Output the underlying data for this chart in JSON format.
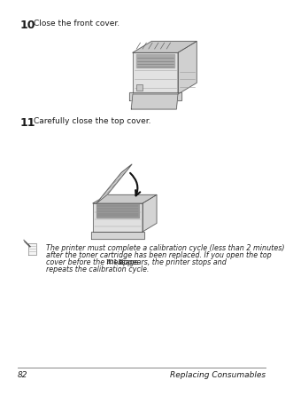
{
  "page_number": "82",
  "footer_text": "Replacing Consumables",
  "step10_number": "10",
  "step10_text": "Close the front cover.",
  "step11_number": "11",
  "step11_text": "Carefully close the top cover.",
  "note_line1": "The printer must complete a calibration cycle (less than 2 minutes)",
  "note_line2": "after the toner cartridge has been replaced. If you open the top",
  "note_line3a": "cover before the message ",
  "note_line3b": "IDLE",
  "note_line3c": " appears, the printer stops and",
  "note_line4": "repeats the calibration cycle.",
  "background_color": "#ffffff",
  "text_color": "#1a1a1a",
  "note_text_color": "#222222",
  "footer_line_color": "#888888",
  "printer_body": "#d8d8d8",
  "printer_dark": "#888888",
  "printer_mid": "#bbbbbb",
  "printer_light": "#ebebeb",
  "printer_edge": "#555555"
}
